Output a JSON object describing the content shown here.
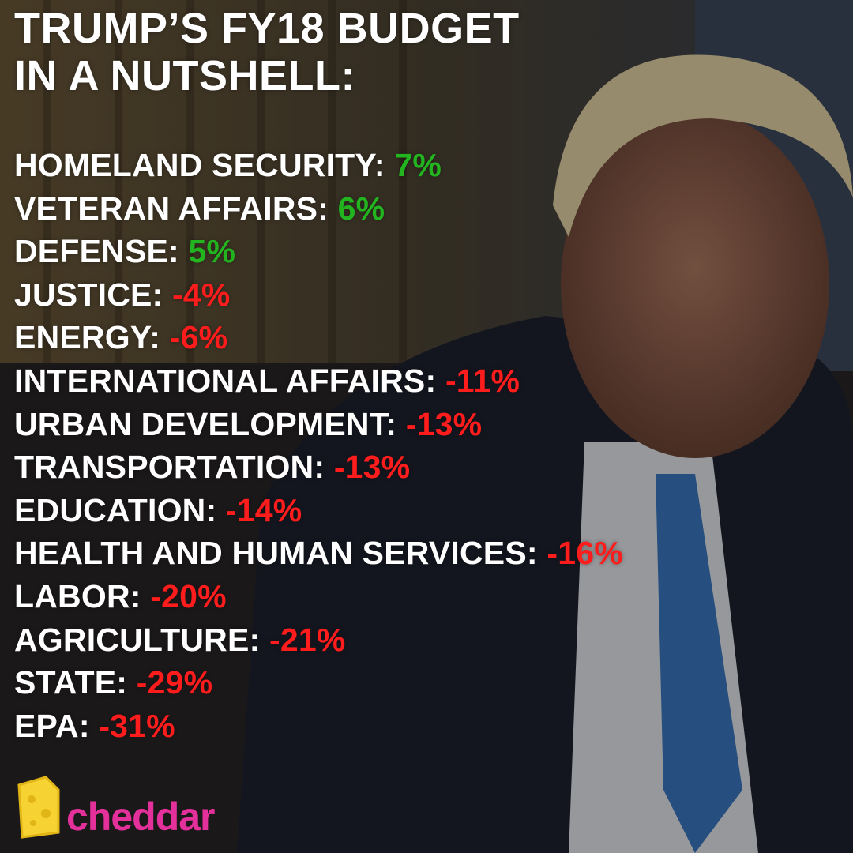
{
  "title": [
    "TRUMP’S FY18 BUDGET",
    "IN A NUTSHELL:"
  ],
  "items": [
    {
      "label": "HOMELAND SECURITY:",
      "value": "7%"
    },
    {
      "label": "VETERAN AFFAIRS:",
      "value": "6%"
    },
    {
      "label": "DEFENSE:",
      "value": "5%"
    },
    {
      "label": "JUSTICE:",
      "value": "-4%"
    },
    {
      "label": "ENERGY:",
      "value": "-6%"
    },
    {
      "label": "INTERNATIONAL AFFAIRS:",
      "value": "-11%"
    },
    {
      "label": "URBAN DEVELOPMENT:",
      "value": "-13%"
    },
    {
      "label": "TRANSPORTATION:",
      "value": "-13%"
    },
    {
      "label": "EDUCATION:",
      "value": "-14%"
    },
    {
      "label": "HEALTH AND HUMAN SERVICES:",
      "value": "-16%"
    },
    {
      "label": "LABOR:",
      "value": "-20%"
    },
    {
      "label": "AGRICULTURE:",
      "value": "-21%"
    },
    {
      "label": "STATE:",
      "value": "-29%"
    },
    {
      "label": "EPA:",
      "value": "-31%"
    }
  ],
  "brand": "cheddar"
}
